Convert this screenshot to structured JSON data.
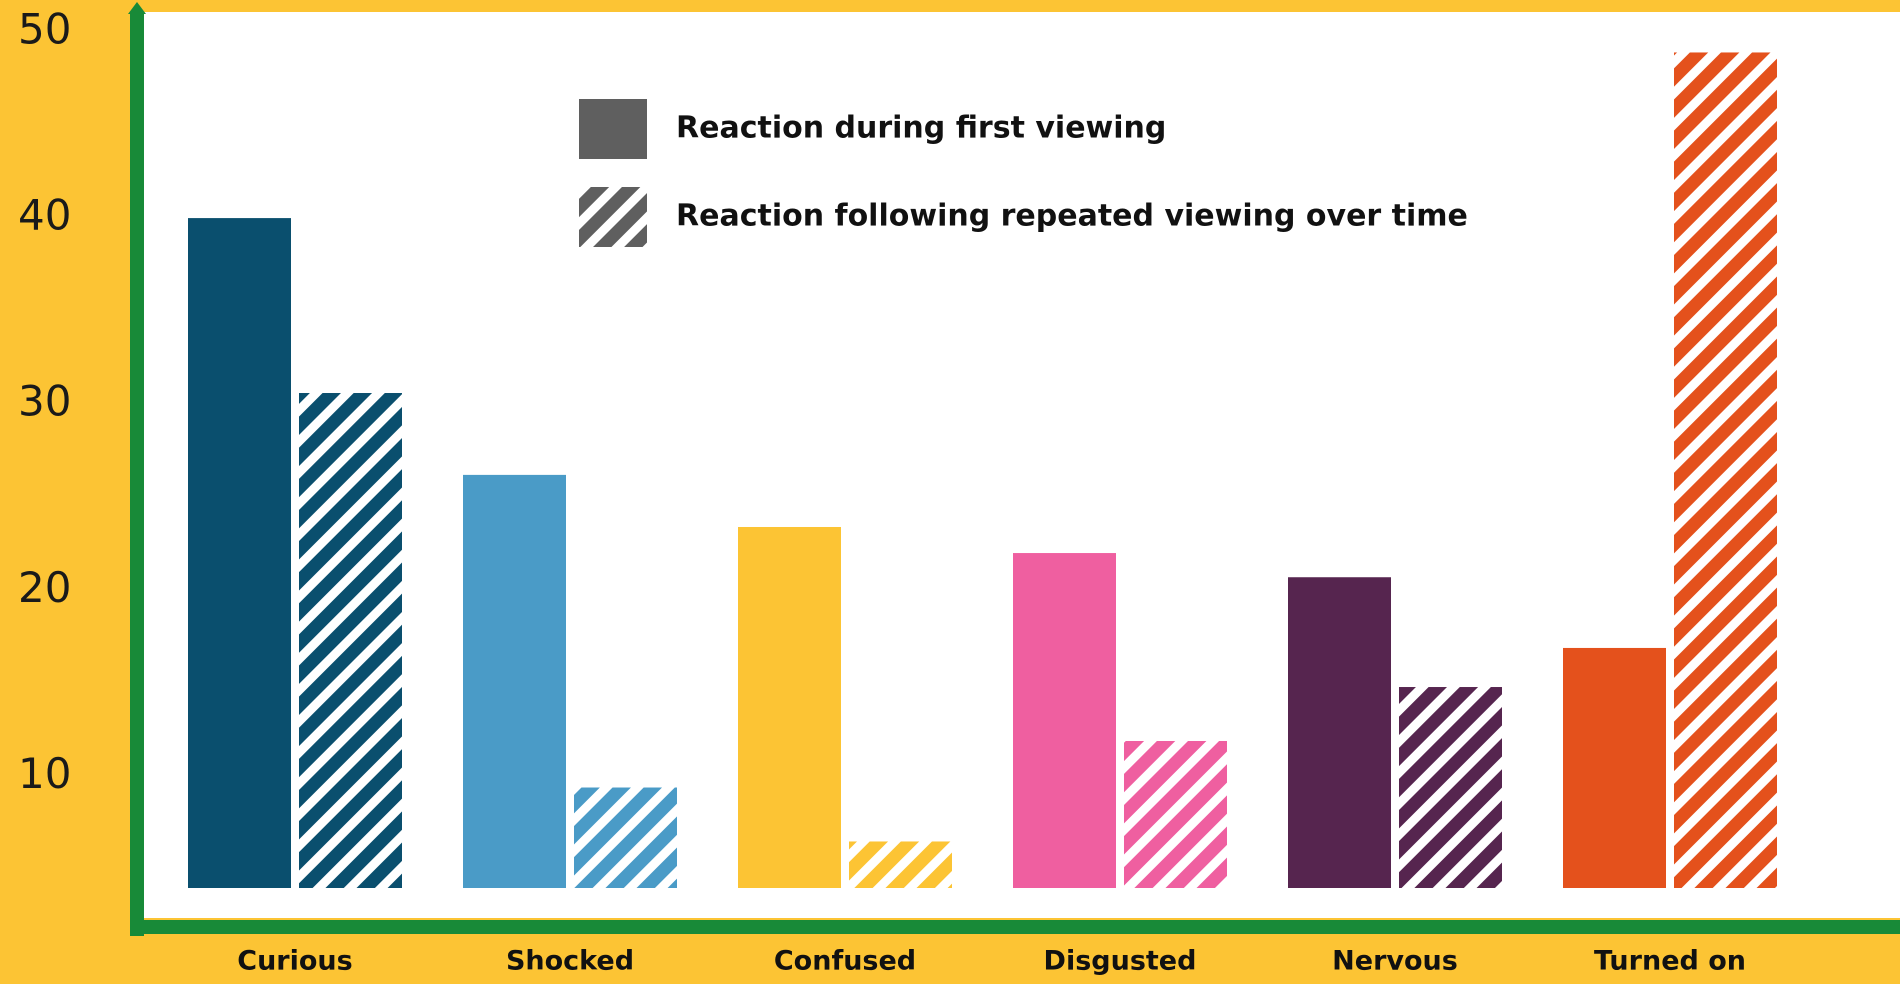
{
  "chart_data": {
    "type": "bar",
    "categories": [
      "Curious",
      "Shocked",
      "Confused",
      "Disgusted",
      "Nervous",
      "Turned on"
    ],
    "category_colors": [
      "#0a4f6e",
      "#4a9bc7",
      "#fcc434",
      "#ef5fa0",
      "#56254f",
      "#e4511c"
    ],
    "series": [
      {
        "name": "Reaction during first viewing",
        "color": "#5f5f5f",
        "hatch": false,
        "values": [
          40,
          26.2,
          23.4,
          22.0,
          20.7,
          16.9
        ]
      },
      {
        "name": "Reaction following repeated viewing over time",
        "color": "#5f5f5f",
        "hatch": true,
        "values": [
          30.6,
          9.4,
          6.5,
          11.9,
          14.8,
          48.9
        ]
      }
    ],
    "ylim": [
      4,
      50
    ],
    "yticks": [
      10,
      20,
      30,
      40,
      50
    ],
    "grid": false
  }
}
